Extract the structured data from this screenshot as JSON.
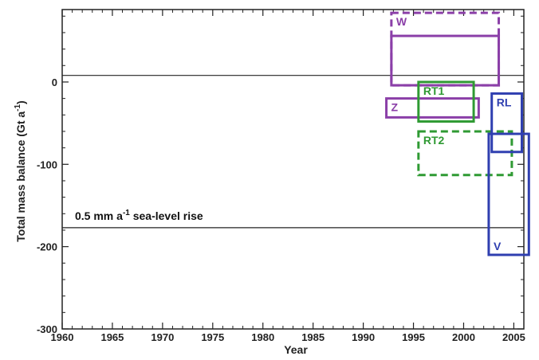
{
  "chart_data": {
    "type": "rectangle-range",
    "title": "",
    "xlabel": "Year",
    "ylabel": "Total mass balance (Gt a",
    "ylabel_sup": "-1",
    "ylabel_close": ")",
    "xlim": [
      1960,
      2006
    ],
    "ylim": [
      -300,
      88
    ],
    "x_ticks": [
      1960,
      1965,
      1970,
      1975,
      1980,
      1985,
      1990,
      1995,
      2000,
      2005
    ],
    "y_ticks": [
      0,
      -100,
      -200,
      -300
    ],
    "colors": {
      "purple": "#8b3fa8",
      "green": "#2f9a33",
      "blue": "#2f3fb0",
      "axis": "#222222"
    },
    "reference_lines": [
      {
        "y": 8,
        "label": ""
      },
      {
        "y": -177,
        "label_main": "0.5 mm  a",
        "label_sup": "-1",
        "label_end": " sea-level rise"
      }
    ],
    "boxes": [
      {
        "label": "W",
        "color": "purple",
        "style": "dashed",
        "x": [
          1992.8,
          2003.5
        ],
        "y": [
          -4,
          84
        ]
      },
      {
        "label": "",
        "color": "purple",
        "style": "solid",
        "x": [
          1992.8,
          2003.5
        ],
        "y": [
          -4,
          56
        ]
      },
      {
        "label": "Z",
        "color": "purple",
        "style": "solid",
        "x": [
          1992.3,
          2001.5
        ],
        "y": [
          -43,
          -20
        ]
      },
      {
        "label": "RT1",
        "color": "green",
        "style": "solid",
        "x": [
          1995.5,
          2001.0
        ],
        "y": [
          -48,
          0
        ]
      },
      {
        "label": "RT2",
        "color": "green",
        "style": "dashed",
        "x": [
          1995.5,
          2004.8
        ],
        "y": [
          -113,
          -60
        ]
      },
      {
        "label": "RL",
        "color": "blue",
        "style": "solid",
        "x": [
          2002.8,
          2005.8
        ],
        "y": [
          -85,
          -14
        ]
      },
      {
        "label": "V",
        "color": "blue",
        "style": "solid",
        "x": [
          2002.5,
          2006.5
        ],
        "y": [
          -210,
          -63
        ]
      }
    ]
  }
}
